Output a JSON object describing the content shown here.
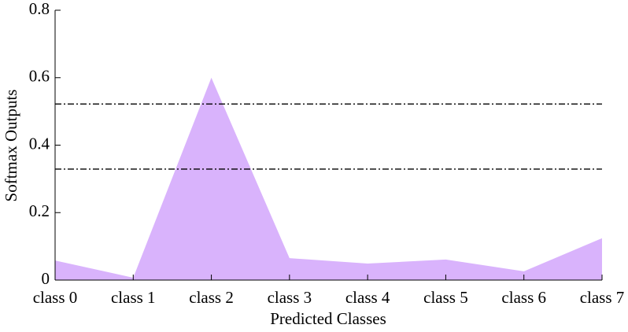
{
  "chart_data": {
    "type": "area",
    "x_label": "Predicted Classes",
    "y_label": "Softmax Outputs",
    "categories": [
      "class 0",
      "class 1",
      "class 2",
      "class 3",
      "class 4",
      "class 5",
      "class 6",
      "class 7"
    ],
    "values": [
      0.058,
      0.007,
      0.6,
      0.065,
      0.049,
      0.061,
      0.026,
      0.124
    ],
    "color": "#d9b3fc",
    "ylim": [
      0,
      0.8
    ],
    "yticks": [
      0,
      0.2,
      0.4,
      0.6,
      0.8
    ],
    "reference_lines": [
      0.522,
      0.329
    ]
  }
}
